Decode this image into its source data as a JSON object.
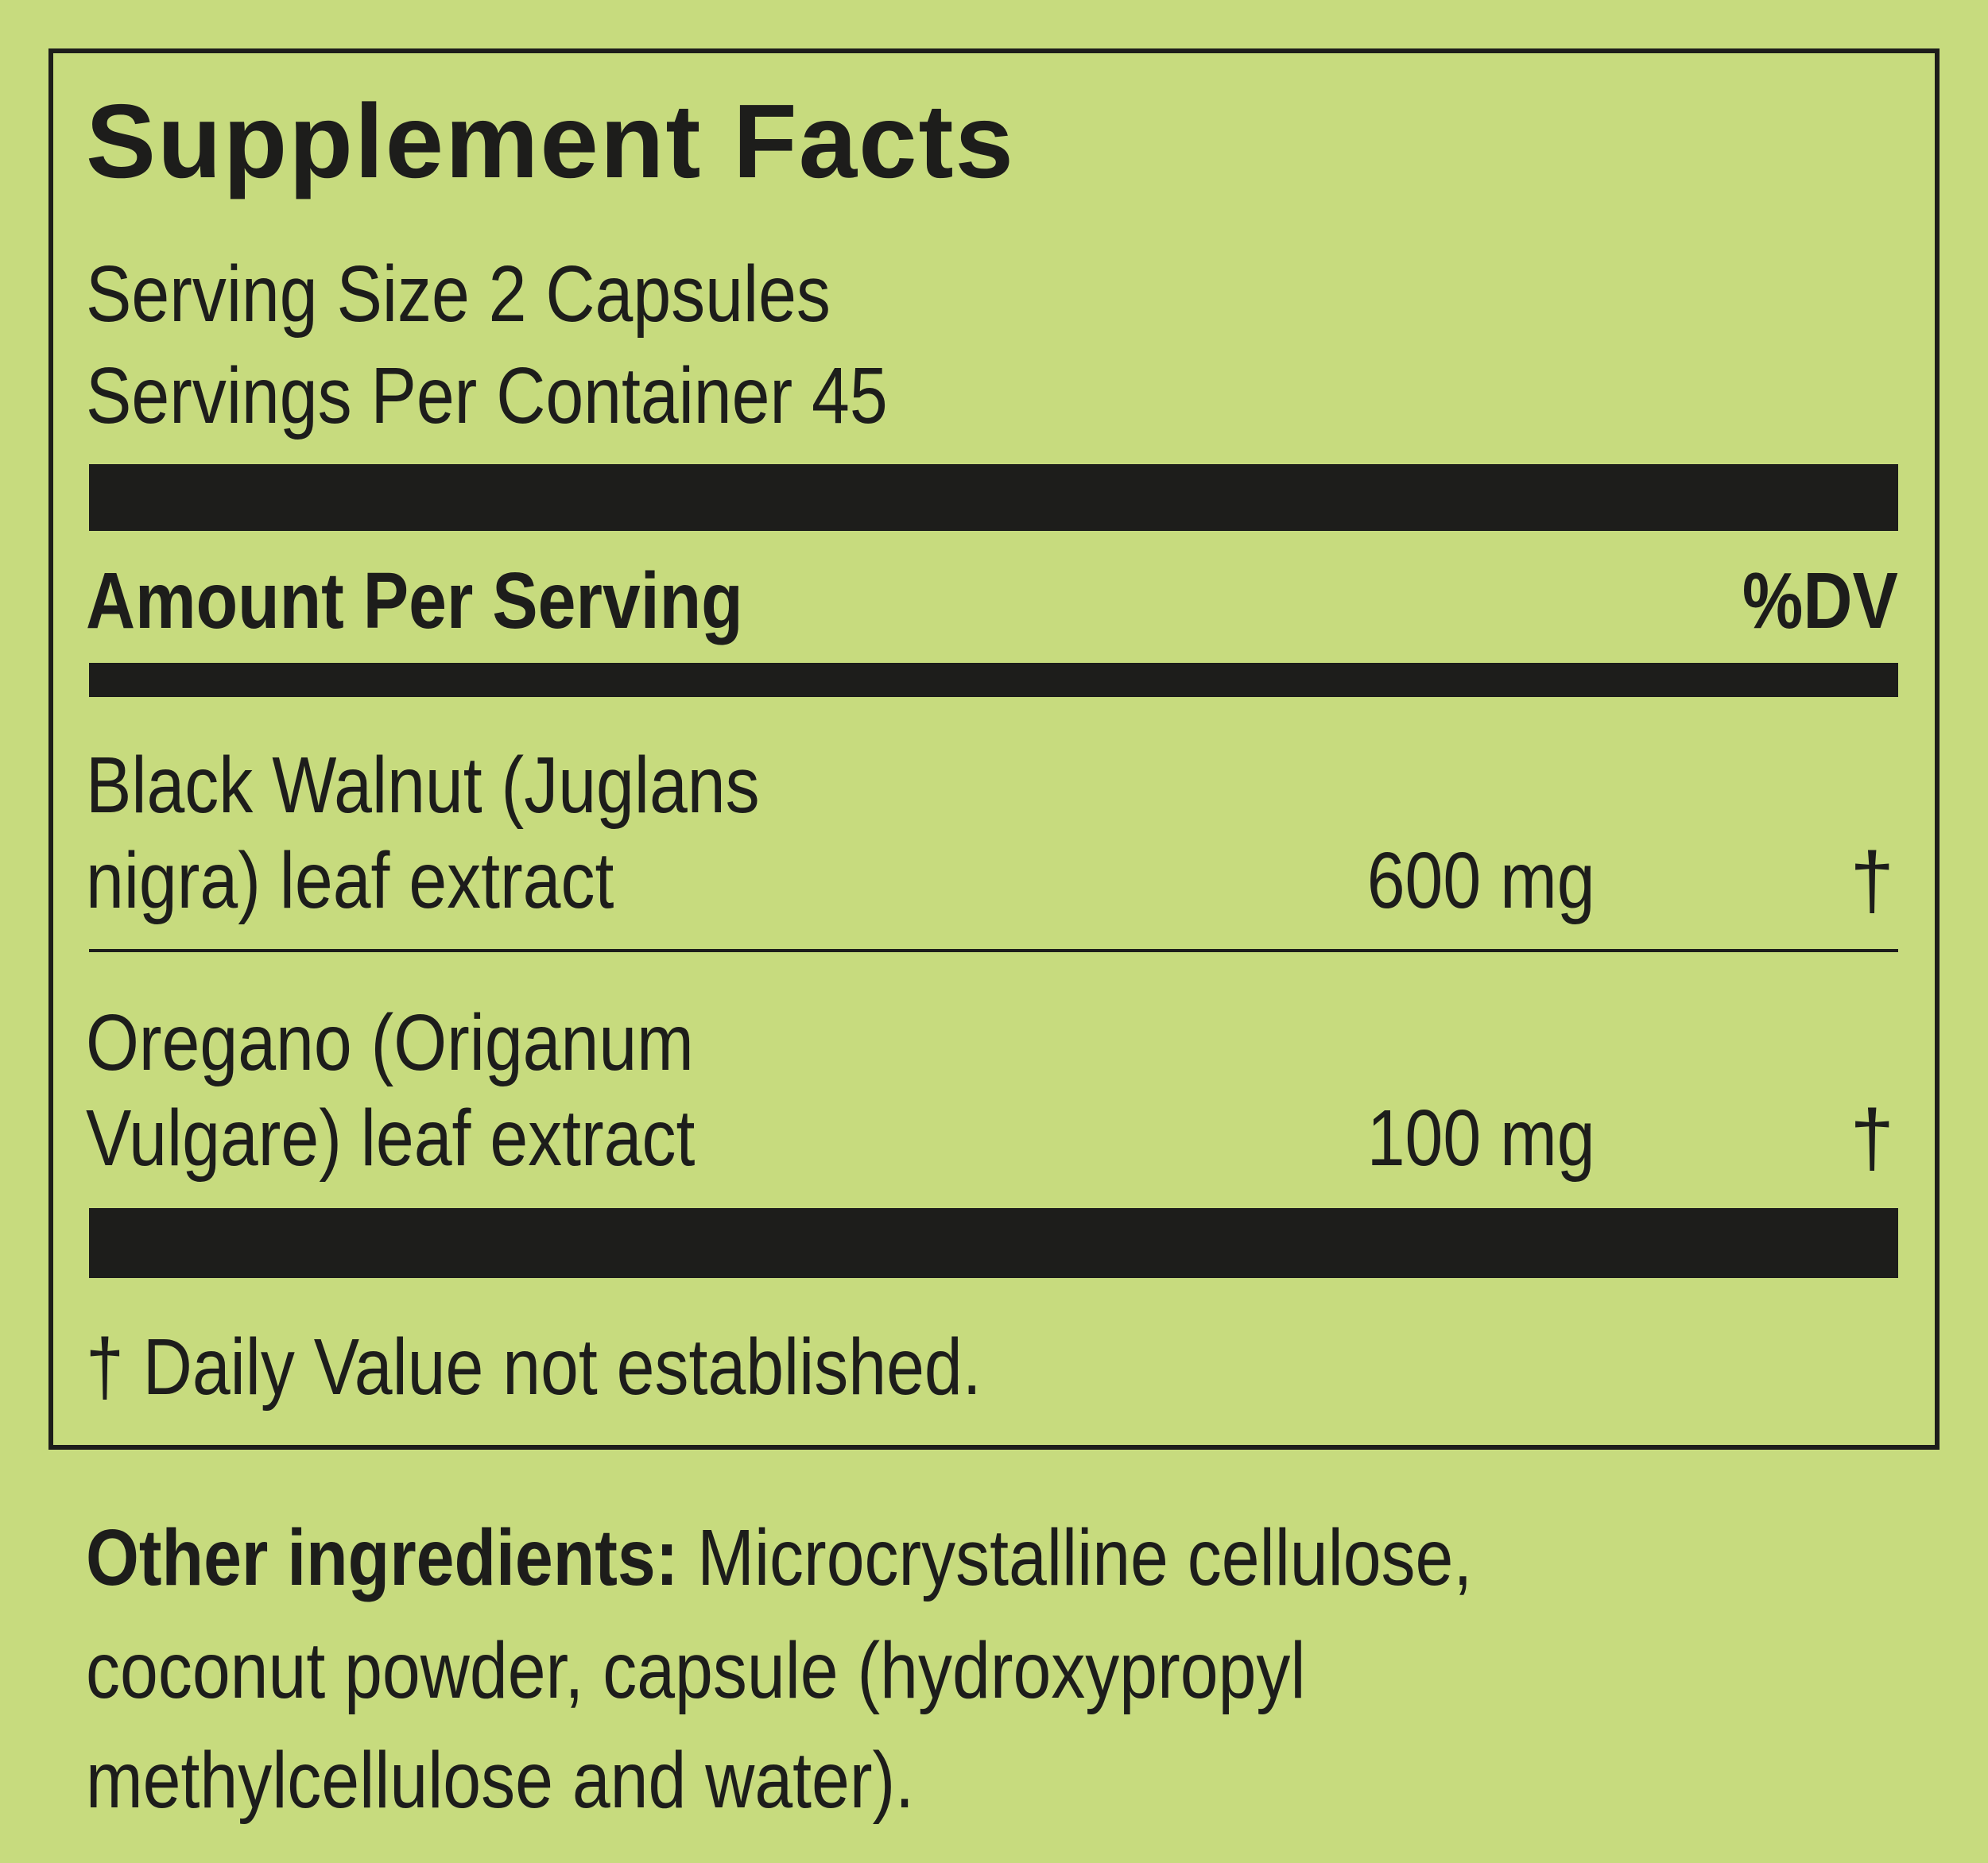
{
  "title": "Supplement Facts",
  "serving_size": "Serving Size 2 Capsules",
  "servings_per_container": "Servings Per Container 45",
  "header": {
    "amount": "Amount Per Serving",
    "dv": "%DV"
  },
  "ingredients": [
    {
      "name_line1": "Black Walnut (Juglans",
      "name_line2": "nigra) leaf extract",
      "amount": "600 mg",
      "dv": "†"
    },
    {
      "name_line1": "Oregano (Origanum",
      "name_line2": "Vulgare) leaf extract",
      "amount": "100 mg",
      "dv": "†"
    }
  ],
  "footnote": "† Daily Value not established.",
  "other": {
    "label": "Other ingredients:",
    "line1": "Microcrystalline cellulose,",
    "line2": "coconut powder, capsule (hydroxypropyl",
    "line3": "methylcellulose and water)."
  },
  "colors": {
    "background": "#c7db7e",
    "ink": "#1d1d1b"
  }
}
